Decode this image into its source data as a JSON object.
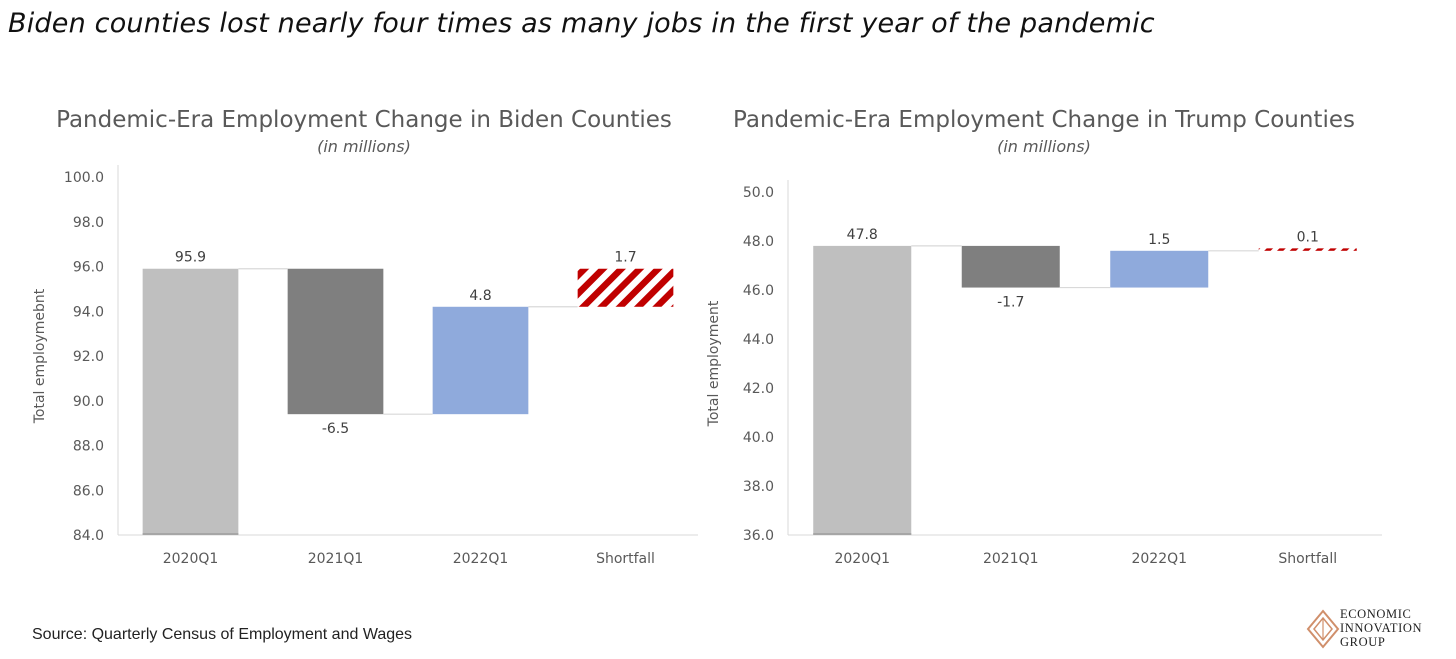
{
  "headline": "Biden counties lost nearly four times as many jobs in the first year of the pandemic",
  "source": "Source: Quarterly Census of Employment and Wages",
  "logo": {
    "line1": "ECONOMIC",
    "line2": "INNOVATION",
    "line3": "GROUP",
    "color": "#d08f6b"
  },
  "colors": {
    "baseline": "#bfbfbf",
    "loss": "#7f7f7f",
    "gain": "#8faadc",
    "shortfall": "#c00000"
  },
  "chart_data": [
    {
      "type": "waterfall",
      "title": "Pandemic-Era Employment Change in Biden Counties",
      "subtitle": "(in millions)",
      "ylabel": "Total employmebnt",
      "ylim": [
        84.0,
        100.0
      ],
      "yticks": [
        84.0,
        86.0,
        88.0,
        90.0,
        92.0,
        94.0,
        96.0,
        98.0,
        100.0
      ],
      "ytick_labels": [
        "84.0",
        "86.0",
        "88.0",
        "90.0",
        "92.0",
        "94.0",
        "96.0",
        "98.0",
        "100.0"
      ],
      "categories": [
        "2020Q1",
        "2021Q1",
        "2022Q1",
        "Shortfall"
      ],
      "values": [
        95.9,
        -6.5,
        4.8,
        1.7
      ],
      "labels": [
        "95.9",
        "-6.5",
        "4.8",
        "1.7"
      ],
      "grid": false,
      "legend": "none"
    },
    {
      "type": "waterfall",
      "title": "Pandemic-Era Employment Change in Trump Counties",
      "subtitle": "(in millions)",
      "ylabel": "Total employment",
      "ylim": [
        36.0,
        50.0
      ],
      "yticks": [
        36.0,
        38.0,
        40.0,
        42.0,
        44.0,
        46.0,
        48.0,
        50.0
      ],
      "ytick_labels": [
        "36.0",
        "38.0",
        "40.0",
        "42.0",
        "44.0",
        "46.0",
        "48.0",
        "50.0"
      ],
      "categories": [
        "2020Q1",
        "2021Q1",
        "2022Q1",
        "Shortfall"
      ],
      "values": [
        47.8,
        -1.7,
        1.5,
        0.1
      ],
      "labels": [
        "47.8",
        "-1.7",
        "1.5",
        "0.1"
      ],
      "grid": false,
      "legend": "none"
    }
  ]
}
